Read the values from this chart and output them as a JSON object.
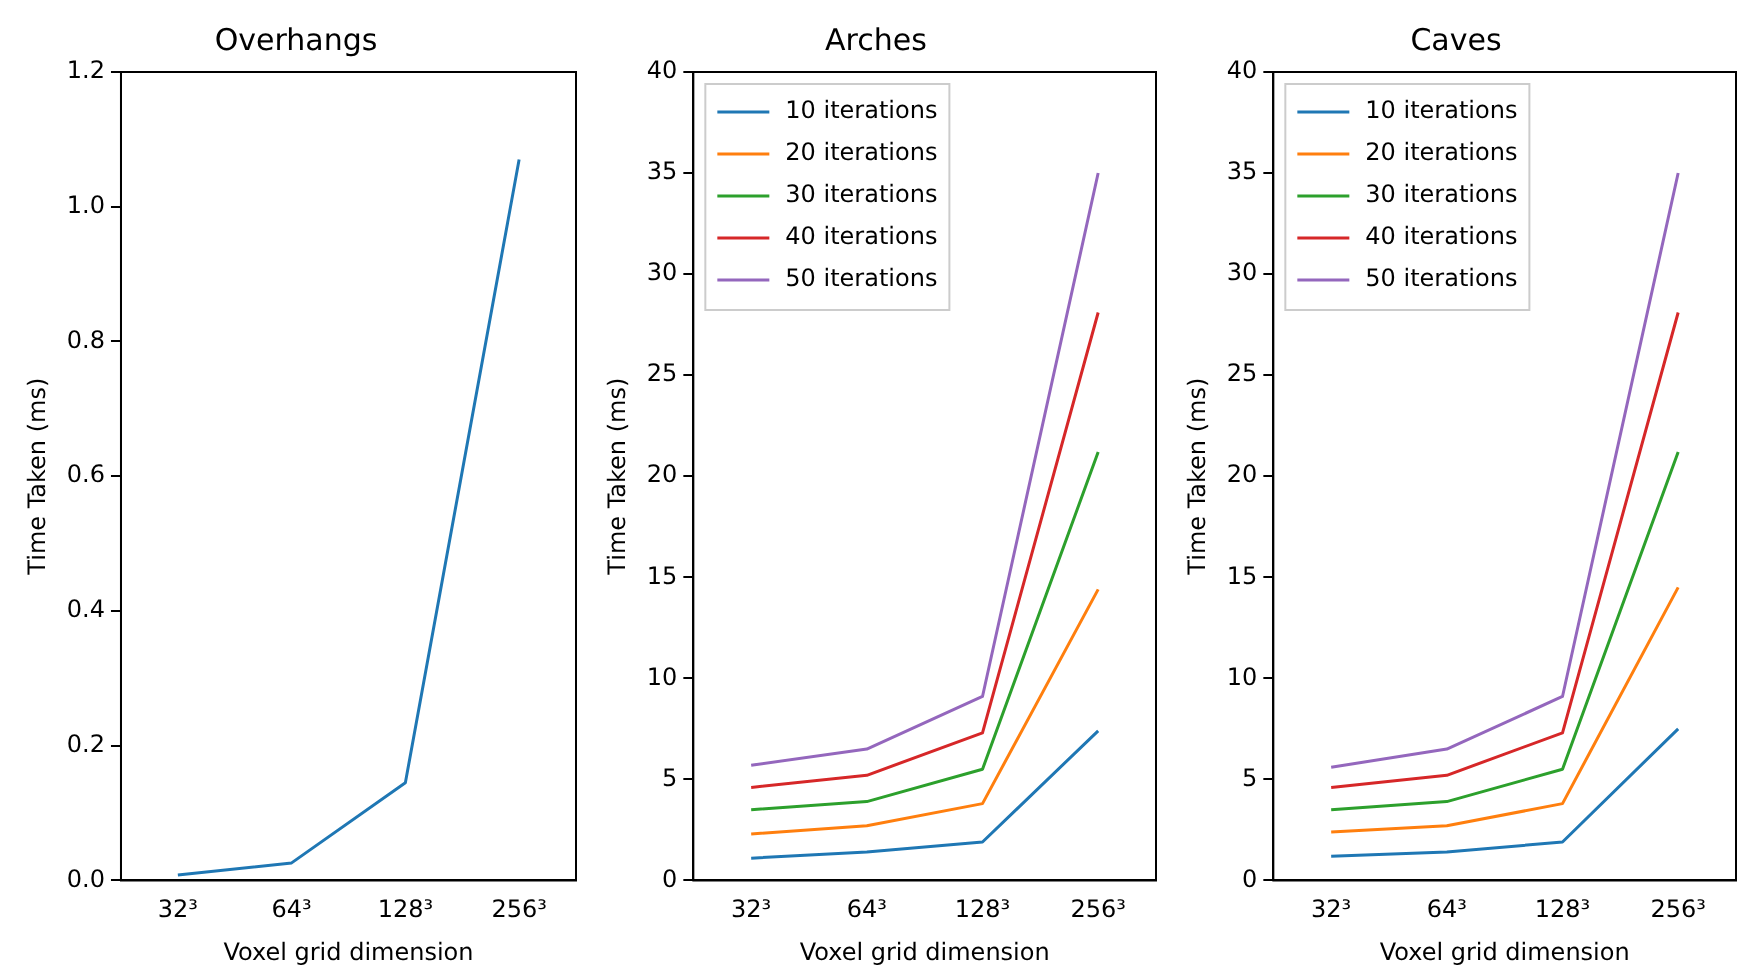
{
  "chart_data": [
    {
      "type": "line",
      "title": "Overhangs",
      "xlabel": "Voxel grid dimension",
      "ylabel": "Time Taken (ms)",
      "categories": [
        "32³",
        "64³",
        "128³",
        "256³"
      ],
      "ylim": [
        0,
        1.2
      ],
      "yticks": [
        {
          "value": 0,
          "label": "0.0"
        },
        0.2,
        0.4,
        0.6,
        0.8,
        {
          "value": 1,
          "label": "1.0"
        },
        1.2
      ],
      "grid": false,
      "legend": false,
      "series": [
        {
          "color": "#1f77b4",
          "values": [
            0.008,
            0.026,
            0.145,
            1.07
          ]
        }
      ]
    },
    {
      "type": "line",
      "title": "Arches",
      "xlabel": "Voxel grid dimension",
      "ylabel": "Time Taken (ms)",
      "categories": [
        "32³",
        "64³",
        "128³",
        "256³"
      ],
      "ylim": [
        0,
        40
      ],
      "yticks": [
        0,
        5,
        10,
        15,
        20,
        25,
        30,
        35,
        40
      ],
      "grid": false,
      "legend": "top left",
      "series": [
        {
          "name": "10 iterations",
          "color": "#1f77b4",
          "values": [
            1.1,
            1.4,
            1.9,
            7.4
          ]
        },
        {
          "name": "20 iterations",
          "color": "#ff7f0e",
          "values": [
            2.3,
            2.7,
            3.8,
            14.4
          ]
        },
        {
          "name": "30 iterations",
          "color": "#2ca02c",
          "values": [
            3.5,
            3.9,
            5.5,
            21.2
          ]
        },
        {
          "name": "40 iterations",
          "color": "#d62728",
          "values": [
            4.6,
            5.2,
            7.3,
            28.1
          ]
        },
        {
          "name": "50 iterations",
          "color": "#9467bd",
          "values": [
            5.7,
            6.5,
            9.1,
            35.0
          ]
        }
      ]
    },
    {
      "type": "line",
      "title": "Caves",
      "xlabel": "Voxel grid dimension",
      "ylabel": "Time Taken (ms)",
      "categories": [
        "32³",
        "64³",
        "128³",
        "256³"
      ],
      "ylim": [
        0,
        40
      ],
      "yticks": [
        0,
        5,
        10,
        15,
        20,
        25,
        30,
        35,
        40
      ],
      "grid": false,
      "legend": "top left",
      "series": [
        {
          "name": "10 iterations",
          "color": "#1f77b4",
          "values": [
            1.2,
            1.4,
            1.9,
            7.5
          ]
        },
        {
          "name": "20 iterations",
          "color": "#ff7f0e",
          "values": [
            2.4,
            2.7,
            3.8,
            14.5
          ]
        },
        {
          "name": "30 iterations",
          "color": "#2ca02c",
          "values": [
            3.5,
            3.9,
            5.5,
            21.2
          ]
        },
        {
          "name": "40 iterations",
          "color": "#d62728",
          "values": [
            4.6,
            5.2,
            7.3,
            28.1
          ]
        },
        {
          "name": "50 iterations",
          "color": "#9467bd",
          "values": [
            5.6,
            6.5,
            9.1,
            35.0
          ]
        }
      ]
    }
  ]
}
